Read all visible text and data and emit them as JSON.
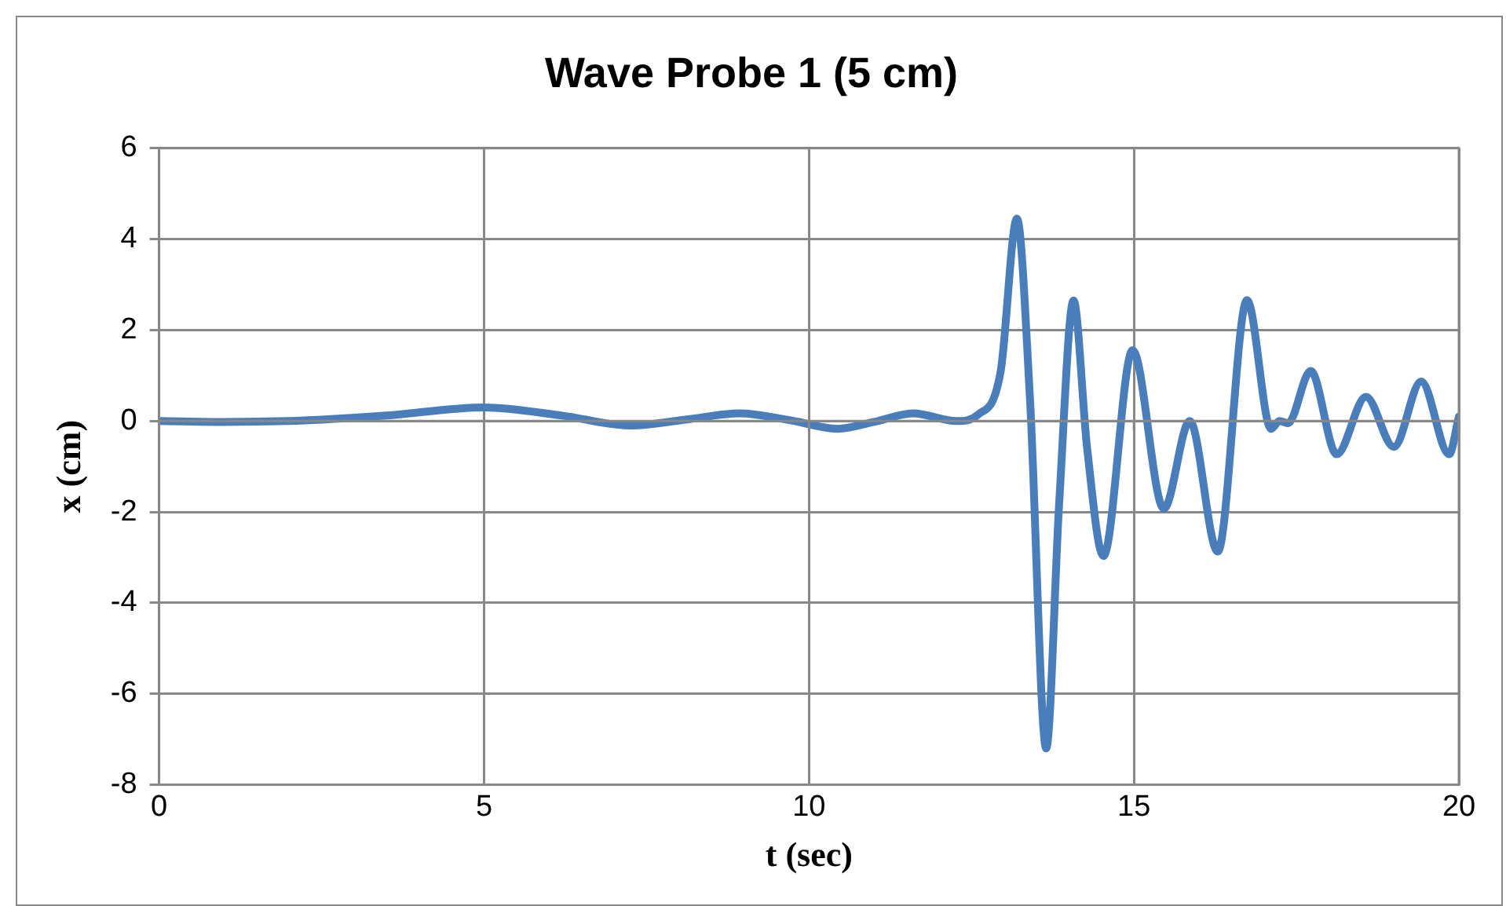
{
  "chart_data": {
    "type": "line",
    "title": "Wave Probe 1 (5 cm)",
    "xlabel": "t (sec)",
    "ylabel": "x (cm)",
    "xlim": [
      0,
      20
    ],
    "xticks": [
      0,
      5,
      10,
      15,
      20
    ],
    "ylim": [
      -8,
      6
    ],
    "yticks": [
      -8,
      -6,
      -4,
      -2,
      0,
      2,
      4,
      6
    ],
    "grid": true,
    "legend": false,
    "marker": "none",
    "line_style": "solid",
    "series": [
      {
        "color": "#4a7ebb",
        "x": [
          0,
          1,
          2,
          2.5,
          3.5,
          5,
          6.2,
          7.25,
          8.1,
          8.93,
          9.7,
          10.44,
          11,
          11.6,
          12.27,
          12.6,
          12.95,
          13.2,
          13.4,
          13.65,
          13.85,
          14.07,
          14.28,
          14.53,
          14.98,
          15.46,
          15.86,
          16.29,
          16.74,
          17.11,
          17.24,
          17.37,
          17.72,
          18.12,
          18.57,
          19,
          19.42,
          19.85,
          20
        ],
        "values": [
          0,
          -0.02,
          0,
          0.03,
          0.12,
          0.3,
          0.12,
          -0.1,
          0.03,
          0.17,
          0.02,
          -0.17,
          -0.02,
          0.17,
          0,
          0.14,
          1.1,
          4.45,
          0.5,
          -7.2,
          -1.8,
          2.65,
          -0.6,
          -2.97,
          1.56,
          -1.93,
          0,
          -2.87,
          2.66,
          -0.17,
          0,
          -0.05,
          1.1,
          -0.73,
          0.53,
          -0.57,
          0.87,
          -0.73,
          0.1
        ]
      }
    ]
  }
}
